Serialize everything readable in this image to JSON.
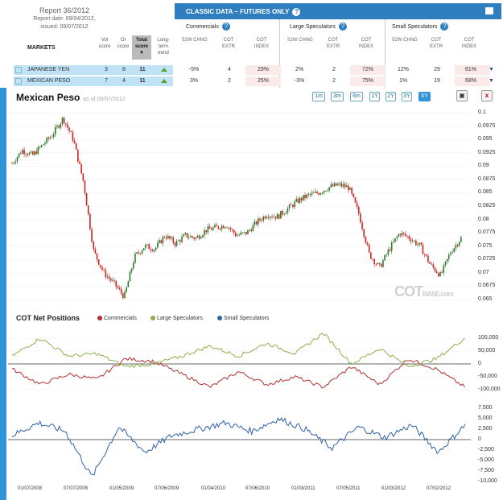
{
  "report": {
    "title": "Report 36/2012",
    "date": "Report date: 09/04/2012,",
    "issued": "issued: 09/07/2012"
  },
  "table_header": {
    "markets": "MARKETS",
    "vol": "Vol score",
    "oi": "OI score",
    "total": "Total score",
    "trend": "Long-term trend",
    "classic": "CLASSIC DATA – FUTURES ONLY",
    "groups": [
      "Commercials",
      "Large Speculators",
      "Small Speculators"
    ],
    "subcols": [
      "52W CHNG",
      "COT EXTR",
      "COT INDEX"
    ]
  },
  "rows": [
    {
      "name": "JAPANESE YEN",
      "vol": "3",
      "oi": "8",
      "total": "11",
      "comm": [
        "-5%",
        "4",
        "29%"
      ],
      "large": [
        "2%",
        "2",
        "72%"
      ],
      "small": [
        "12%",
        "29",
        "61%"
      ]
    },
    {
      "name": "MEXICAN PESO",
      "vol": "7",
      "oi": "4",
      "total": "11",
      "comm": [
        "3%",
        "2",
        "25%"
      ],
      "large": [
        "-3%",
        "2",
        "75%"
      ],
      "small": [
        "1%",
        "19",
        "68%"
      ]
    }
  ],
  "chart": {
    "title": "Mexican Peso",
    "as_of": "as of 09/07/2012",
    "ranges": [
      "1m",
      "3m",
      "6m",
      "1Y",
      "2Y",
      "3Y",
      "5Y"
    ],
    "active_range": "5Y",
    "watermark": "COT",
    "watermark_small": "BASE.com"
  },
  "cot": {
    "title": "COT Net Positions",
    "legend": [
      "Commercials",
      "Large Speculators",
      "Small Speculators"
    ]
  },
  "colors": {
    "up": "#2b7a2b",
    "down": "#cc2222",
    "commercials": "#b23030",
    "large": "#8db04a",
    "small": "#2f62a8",
    "accent": "#2f94d8"
  },
  "chart_data": [
    {
      "type": "candlestick",
      "title": "Mexican Peso",
      "ylim": [
        0.065,
        0.1
      ],
      "y_ticks": [
        "0.1",
        "0.0975",
        "0.095",
        "0.0925",
        "0.09",
        "0.0875",
        "0.085",
        "0.0825",
        "0.08",
        "0.0775",
        "0.075",
        "0.0725",
        "0.07",
        "0.0675",
        "0.065"
      ],
      "x_ticks": [
        "01/07/2008",
        "07/07/2008",
        "01/05/2009",
        "07/06/2009",
        "01/04/2010",
        "07/06/2010",
        "01/03/2011",
        "07/05/2011",
        "01/03/2012",
        "07/02/2012"
      ],
      "approx_close": [
        0.0905,
        0.093,
        0.092,
        0.094,
        0.096,
        0.099,
        0.095,
        0.087,
        0.074,
        0.07,
        0.068,
        0.0655,
        0.073,
        0.075,
        0.0745,
        0.077,
        0.0755,
        0.077,
        0.0765,
        0.078,
        0.0785,
        0.079,
        0.077,
        0.0775,
        0.0795,
        0.081,
        0.0805,
        0.082,
        0.0835,
        0.0845,
        0.085,
        0.086,
        0.0865,
        0.086,
        0.081,
        0.0735,
        0.071,
        0.0745,
        0.0775,
        0.0765,
        0.075,
        0.0715,
        0.0695,
        0.074,
        0.0765
      ]
    },
    {
      "type": "line",
      "title": "COT Net Positions",
      "series": [
        {
          "name": "Commercials",
          "values": [
            -20000,
            -80000,
            -40000,
            -60000,
            20000,
            10000,
            -40000,
            -90000,
            -30000,
            -80000,
            -50000,
            -90000,
            -10000,
            -80000,
            20000,
            -20000,
            -90000
          ]
        },
        {
          "name": "Large Speculators",
          "values": [
            30000,
            100000,
            30000,
            40000,
            -10000,
            0,
            30000,
            70000,
            30000,
            80000,
            40000,
            120000,
            0,
            60000,
            -10000,
            20000,
            100000
          ]
        }
      ],
      "y_ticks": [
        "100,000",
        "50,000",
        "0",
        "-50,000",
        "-100,000"
      ]
    },
    {
      "type": "line",
      "series": [
        {
          "name": "Small Speculators",
          "values": [
            1000,
            4000,
            2000,
            -9000,
            3000,
            -3000,
            1000,
            2500,
            4000,
            2000,
            5000,
            2500,
            -2000,
            3000,
            500,
            3500,
            -3000,
            3500
          ]
        }
      ],
      "y_ticks": [
        "7,500",
        "5,000",
        "2,500",
        "0",
        "-2,500",
        "-5,000",
        "-7,500",
        "-10,000"
      ]
    }
  ]
}
